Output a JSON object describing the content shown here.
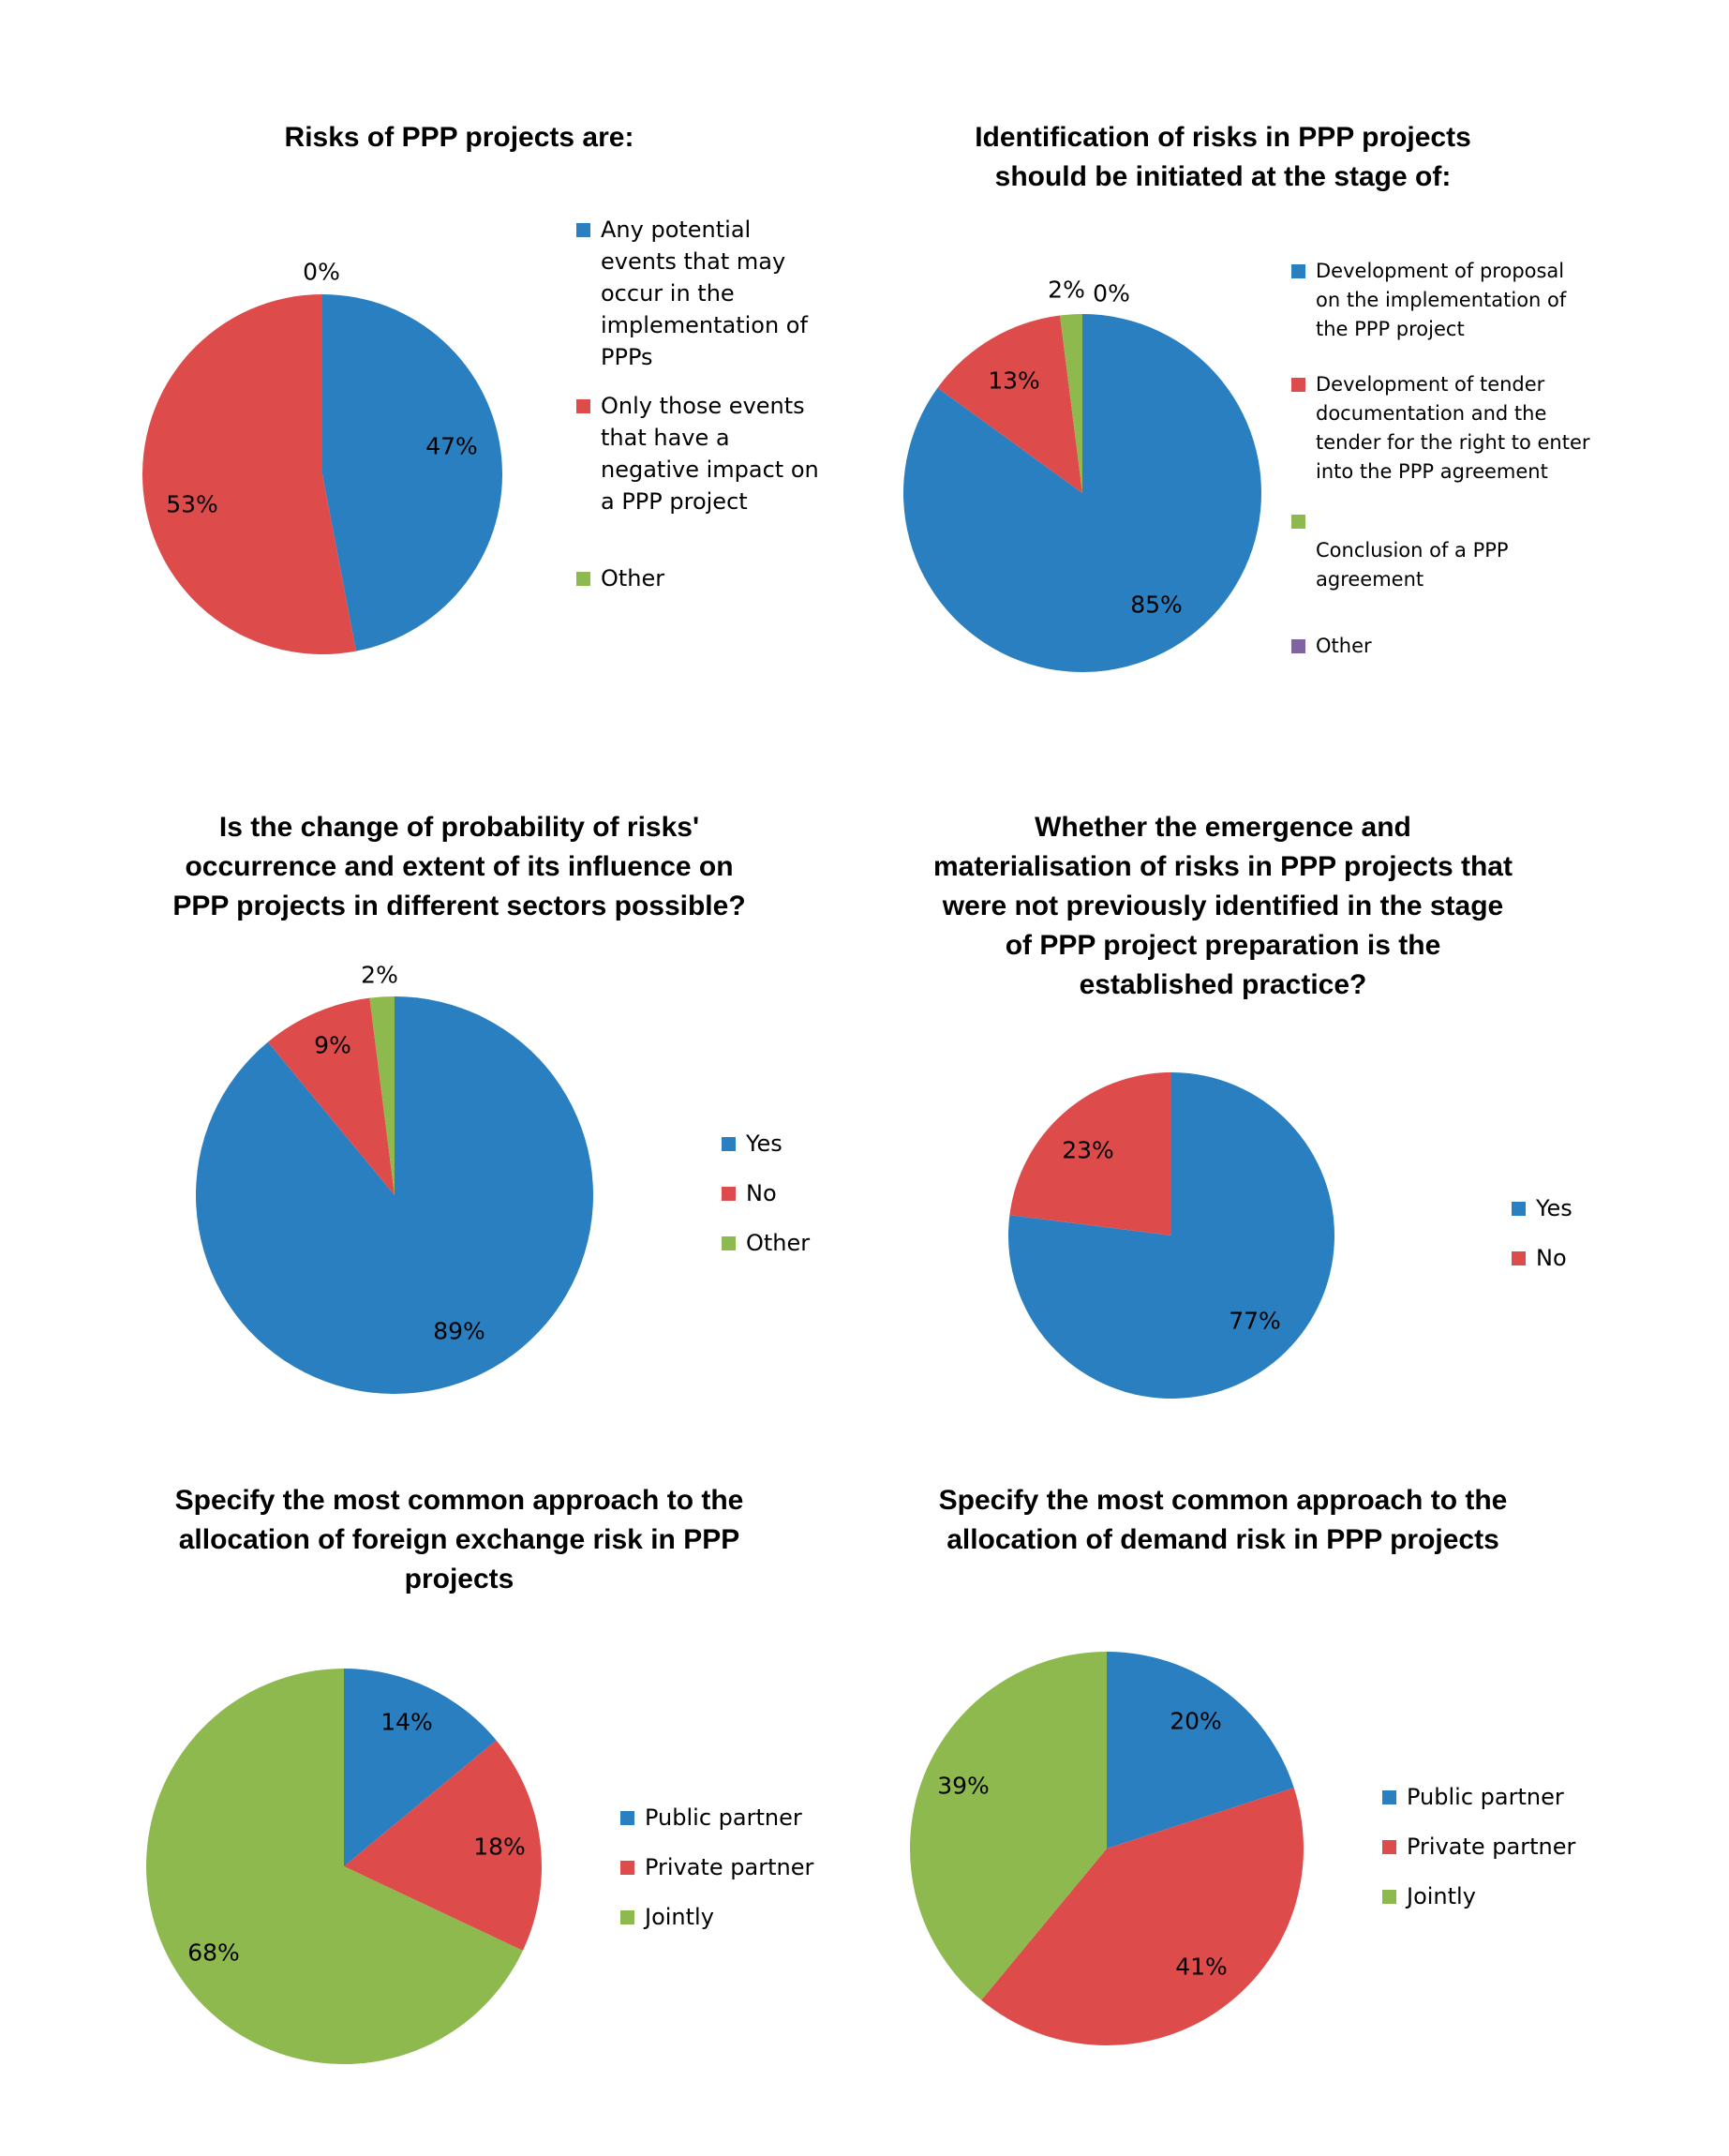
{
  "colors": {
    "blue": "#2a7fc1",
    "red": "#dd4b4a",
    "green": "#8db94f",
    "purple": "#8064a2"
  },
  "chart_data": [
    {
      "type": "pie",
      "title": [
        "Risks of PPP projects are:"
      ],
      "slices": [
        {
          "label": [
            "Any potential",
            "events that may",
            "occur in the",
            "implementation of",
            "PPPs"
          ],
          "value": 47,
          "display": "47%",
          "color": "#2a7fc1"
        },
        {
          "label": [
            "Only those events",
            "that have a",
            "negative impact on",
            "a PPP project"
          ],
          "value": 53,
          "display": "53%",
          "color": "#dd4b4a"
        },
        {
          "label": [
            "Other"
          ],
          "value": 0,
          "display": "0%",
          "color": "#8db94f"
        }
      ]
    },
    {
      "type": "pie",
      "title": [
        "Identification of risks in PPP projects",
        "should be initiated at the stage of:"
      ],
      "slices": [
        {
          "label": [
            "Development of proposal",
            "on the implementation of",
            "the PPP project"
          ],
          "value": 85,
          "display": "85%",
          "color": "#2a7fc1"
        },
        {
          "label": [
            "Development of tender",
            "documentation and the",
            "tender for the right to enter",
            "into the PPP agreement"
          ],
          "value": 13,
          "display": "13%",
          "color": "#dd4b4a"
        },
        {
          "label": [
            "",
            "Conclusion of a PPP",
            "agreement"
          ],
          "value": 2,
          "display": "2%",
          "color": "#8db94f"
        },
        {
          "label": [
            "Other"
          ],
          "value": 0,
          "display": "0%",
          "color": "#8064a2"
        }
      ]
    },
    {
      "type": "pie",
      "title": [
        "Is the change of probability of risks'",
        "occurrence and extent of its influence on",
        "PPP projects in different sectors possible?"
      ],
      "slices": [
        {
          "label": [
            "Yes"
          ],
          "value": 89,
          "display": "89%",
          "color": "#2a7fc1"
        },
        {
          "label": [
            "No"
          ],
          "value": 9,
          "display": "9%",
          "color": "#dd4b4a"
        },
        {
          "label": [
            "Other"
          ],
          "value": 2,
          "display": "2%",
          "color": "#8db94f"
        }
      ]
    },
    {
      "type": "pie",
      "title": [
        "Whether the emergence and",
        "materialisation of risks in PPP projects that",
        "were not previously identified in the stage",
        "of PPP project preparation is the",
        "established practice?"
      ],
      "slices": [
        {
          "label": [
            "Yes"
          ],
          "value": 77,
          "display": "77%",
          "color": "#2a7fc1"
        },
        {
          "label": [
            "No"
          ],
          "value": 23,
          "display": "23%",
          "color": "#dd4b4a"
        }
      ]
    },
    {
      "type": "pie",
      "title": [
        "Specify the most common approach to the",
        "allocation of foreign exchange risk in PPP",
        "projects"
      ],
      "slices": [
        {
          "label": [
            "Public partner"
          ],
          "value": 14,
          "display": "14%",
          "color": "#2a7fc1"
        },
        {
          "label": [
            "Private partner"
          ],
          "value": 18,
          "display": "18%",
          "color": "#dd4b4a"
        },
        {
          "label": [
            "Jointly"
          ],
          "value": 68,
          "display": "68%",
          "color": "#8db94f"
        }
      ]
    },
    {
      "type": "pie",
      "title": [
        "Specify the most common approach to the",
        "allocation of demand risk in PPP projects"
      ],
      "slices": [
        {
          "label": [
            "Public partner"
          ],
          "value": 20,
          "display": "20%",
          "color": "#2a7fc1"
        },
        {
          "label": [
            "Private partner"
          ],
          "value": 41,
          "display": "41%",
          "color": "#dd4b4a"
        },
        {
          "label": [
            "Jointly"
          ],
          "value": 39,
          "display": "39%",
          "color": "#8db94f"
        }
      ]
    }
  ]
}
